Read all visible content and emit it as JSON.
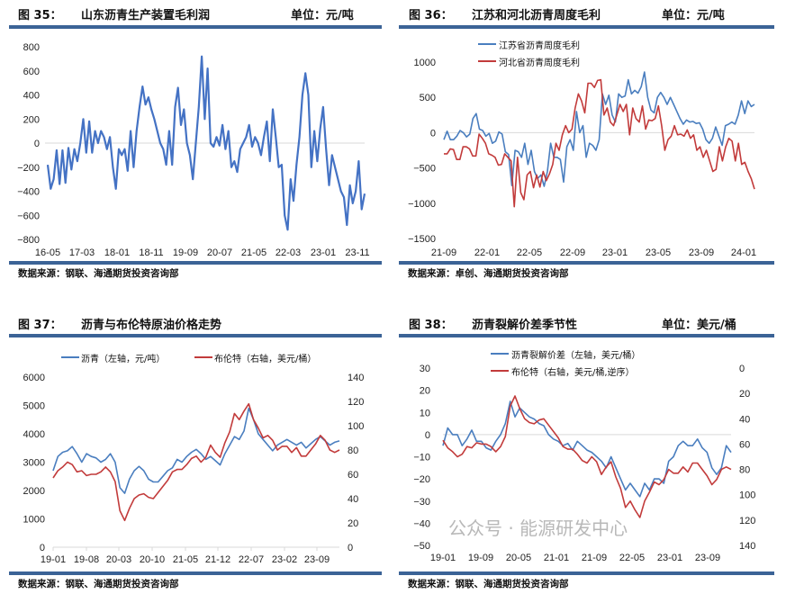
{
  "chart_data": [
    {
      "type": "line",
      "figure_label": "图 35：",
      "title": "山东沥青生产装置毛利润",
      "unit": "单位：元/吨",
      "source": "数据来源：钢联、海通期货投资咨询部",
      "xlabel": "",
      "ylabel": "",
      "x_range": [
        "2016-05",
        "2024-01"
      ],
      "x_ticks": [
        "16-05",
        "17-03",
        "18-01",
        "18-11",
        "19-09",
        "20-07",
        "21-05",
        "22-03",
        "23-01",
        "23-11"
      ],
      "ylim": [
        -800,
        800
      ],
      "y_ticks": [
        800,
        600,
        400,
        200,
        0,
        -200,
        -400,
        -600,
        -800
      ],
      "grid": "zero-line",
      "series": [
        {
          "name": "山东沥青生产装置毛利润",
          "color": "#4472c4",
          "values": [
            -180,
            -380,
            -300,
            -60,
            -340,
            -60,
            -330,
            -40,
            -220,
            -50,
            -150,
            0,
            200,
            -80,
            180,
            -80,
            100,
            0,
            100,
            50,
            -50,
            50,
            -200,
            -380,
            -50,
            -100,
            -50,
            -230,
            100,
            -200,
            100,
            300,
            470,
            320,
            380,
            280,
            200,
            100,
            0,
            -50,
            -180,
            100,
            -180,
            300,
            460,
            150,
            280,
            0,
            -100,
            -300,
            0,
            300,
            720,
            200,
            620,
            0,
            -30,
            50,
            -20,
            150,
            -50,
            100,
            -200,
            -150,
            -240,
            -50,
            0,
            50,
            150,
            -30,
            50,
            0,
            -100,
            50,
            180,
            -150,
            280,
            50,
            -200,
            -180,
            -600,
            -720,
            -300,
            -480,
            -180,
            50,
            400,
            580,
            400,
            -200,
            100,
            -150,
            120,
            300,
            -50,
            -350,
            -100,
            -200,
            -300,
            -400,
            -450,
            -680,
            -350,
            -500,
            -400,
            -150,
            -550,
            -420
          ]
        }
      ]
    },
    {
      "type": "line",
      "figure_label": "图 36：",
      "title": "江苏和河北沥青周度毛利",
      "unit": "单位：元/吨",
      "source": "数据来源：卓创、海通期货投资咨询部",
      "x_range": [
        "2021-09",
        "2024-02"
      ],
      "x_ticks": [
        "21-09",
        "22-01",
        "22-05",
        "22-09",
        "23-01",
        "23-05",
        "23-09",
        "24-01"
      ],
      "ylim": [
        -1500,
        1000
      ],
      "y_ticks": [
        1000,
        500,
        0,
        -500,
        -1000,
        -1500
      ],
      "grid": "zero-line",
      "legend_position": "top-left",
      "series": [
        {
          "name": "江苏省沥青周度毛利",
          "color": "#4a7ebf",
          "values": [
            -100,
            20,
            -100,
            -100,
            -50,
            30,
            0,
            -60,
            -20,
            200,
            270,
            50,
            30,
            -50,
            -10,
            -150,
            -120,
            10,
            -20,
            -270,
            -310,
            -750,
            -250,
            -270,
            -350,
            -150,
            -450,
            -250,
            -550,
            -650,
            -600,
            -760,
            -550,
            -150,
            -350,
            -350,
            -380,
            -700,
            -200,
            -100,
            -250,
            300,
            0,
            100,
            -350,
            -150,
            -180,
            -250,
            -100,
            550,
            400,
            530,
            250,
            150,
            550,
            500,
            520,
            750,
            550,
            600,
            560,
            650,
            860,
            500,
            320,
            280,
            500,
            570,
            500,
            400,
            500,
            400,
            300,
            200,
            120,
            180,
            150,
            160,
            130,
            140,
            50,
            -100,
            -150,
            -80,
            80,
            -50,
            -180,
            100,
            120,
            150,
            120,
            250,
            450,
            270,
            450,
            370,
            400
          ]
        },
        {
          "name": "河北省沥青周度毛利",
          "color": "#c23b3b",
          "values": [
            -300,
            -300,
            -230,
            -240,
            -380,
            -380,
            -200,
            -200,
            -230,
            -330,
            -330,
            -20,
            -80,
            -150,
            -300,
            -320,
            -350,
            -460,
            -450,
            -300,
            -350,
            -400,
            -1050,
            -350,
            -850,
            -950,
            -600,
            -550,
            -780,
            -600,
            -770,
            -550,
            -680,
            -580,
            -450,
            -150,
            -250,
            -30,
            100,
            0,
            50,
            350,
            550,
            450,
            280,
            700,
            700,
            640,
            740,
            750,
            250,
            350,
            150,
            100,
            250,
            400,
            300,
            400,
            -30,
            350,
            200,
            150,
            380,
            50,
            180,
            170,
            200,
            380,
            100,
            -250,
            -100,
            -50,
            100,
            -30,
            -20,
            -50,
            40,
            -80,
            -30,
            -250,
            -200,
            -350,
            -250,
            -400,
            -550,
            -520,
            -200,
            -400,
            -200,
            -80,
            -120,
            -400,
            -150,
            -450,
            -420,
            -550,
            -650,
            -800
          ]
        }
      ]
    },
    {
      "type": "line",
      "figure_label": "图 37：",
      "title": "沥青与布伦特原油价格走势",
      "source": "数据来源：钢联、海通期货投资咨询部",
      "x_range": [
        "2019-01",
        "2024-01"
      ],
      "x_ticks": [
        "19-01",
        "19-08",
        "20-03",
        "20-10",
        "21-05",
        "21-12",
        "22-07",
        "23-02",
        "23-09"
      ],
      "ylim": [
        0,
        6000
      ],
      "y_ticks": [
        6000,
        5000,
        4000,
        3000,
        2000,
        1000,
        0
      ],
      "y2lim": [
        0,
        140
      ],
      "y2_ticks": [
        140,
        120,
        100,
        80,
        60,
        40,
        20,
        0
      ],
      "legend_position": "top",
      "series": [
        {
          "name": "沥青（左轴，元/吨）",
          "axis": "left",
          "color": "#4a7ebf",
          "values": [
            2700,
            3200,
            3350,
            3400,
            3550,
            3300,
            3000,
            3300,
            3200,
            3150,
            3000,
            3100,
            3300,
            3000,
            2100,
            1900,
            2400,
            2700,
            2850,
            2700,
            2400,
            2300,
            2300,
            2500,
            2700,
            2800,
            3100,
            3000,
            3200,
            3350,
            3450,
            3300,
            3100,
            3200,
            3050,
            2900,
            3300,
            3600,
            3900,
            3800,
            4100,
            4900,
            4500,
            4000,
            3800,
            3600,
            3400,
            3600,
            3700,
            3800,
            3700,
            3600,
            3700,
            3500,
            3650,
            3800,
            3900,
            3750,
            3600,
            3700,
            3750
          ]
        },
        {
          "name": "布伦特（右轴，美元/桶）",
          "axis": "right",
          "color": "#c23b3b",
          "values": [
            57,
            63,
            66,
            70,
            68,
            62,
            63,
            59,
            60,
            60,
            62,
            66,
            62,
            54,
            30,
            22,
            32,
            40,
            43,
            44,
            41,
            40,
            45,
            50,
            55,
            62,
            64,
            64,
            68,
            73,
            75,
            70,
            74,
            84,
            78,
            74,
            86,
            95,
            110,
            105,
            112,
            118,
            105,
            98,
            90,
            92,
            88,
            80,
            83,
            83,
            78,
            82,
            75,
            75,
            80,
            85,
            92,
            88,
            80,
            78,
            80
          ]
        }
      ]
    },
    {
      "type": "line",
      "figure_label": "图 38：",
      "title": "沥青裂解价差季节性",
      "unit": "单位：美元/桶",
      "source": "数据来源：钢联、海通期货投资咨询部",
      "watermark": "公众号 · 能源研发中心",
      "x_range": [
        "2019-01",
        "2024-01"
      ],
      "x_ticks": [
        "19-01",
        "19-09",
        "20-05",
        "21-01",
        "21-09",
        "22-05",
        "23-01",
        "23-09"
      ],
      "ylim": [
        -50,
        30
      ],
      "y_ticks": [
        30,
        20,
        10,
        0,
        -10,
        -20,
        -30,
        -40,
        -50
      ],
      "y2lim": [
        140,
        0
      ],
      "y2_ticks": [
        0,
        20,
        40,
        60,
        80,
        100,
        120,
        140
      ],
      "y2_reversed": true,
      "grid": "zero-line",
      "legend_position": "top",
      "series": [
        {
          "name": "沥青裂解价差（左轴，美元/桶）",
          "axis": "left",
          "color": "#4a7ebf",
          "values": [
            -5,
            3,
            0,
            0,
            -5,
            -2,
            2,
            -3,
            -3,
            -6,
            -7,
            -3,
            0,
            5,
            15,
            8,
            12,
            10,
            8,
            7,
            5,
            4,
            0,
            -2,
            -3,
            -5,
            -4,
            -7,
            -3,
            -5,
            -7,
            -8,
            -10,
            -12,
            -15,
            -10,
            -15,
            -20,
            -25,
            -22,
            -25,
            -28,
            -22,
            -25,
            -20,
            -20,
            -22,
            -12,
            -10,
            -5,
            -3,
            -5,
            -5,
            -2,
            -6,
            -8,
            -15,
            -18,
            -15,
            -5,
            -8
          ]
        },
        {
          "name": "布伦特（右轴，美元/桶,逆序）",
          "axis": "right",
          "color": "#c23b3b",
          "values": [
            57,
            63,
            66,
            70,
            68,
            62,
            63,
            59,
            60,
            60,
            62,
            66,
            62,
            54,
            30,
            22,
            32,
            40,
            43,
            44,
            41,
            40,
            45,
            50,
            55,
            62,
            64,
            64,
            68,
            73,
            75,
            70,
            74,
            84,
            78,
            74,
            86,
            95,
            110,
            105,
            112,
            118,
            105,
            98,
            90,
            92,
            88,
            80,
            83,
            83,
            78,
            82,
            75,
            75,
            80,
            85,
            92,
            88,
            80,
            78,
            80
          ]
        }
      ]
    }
  ]
}
